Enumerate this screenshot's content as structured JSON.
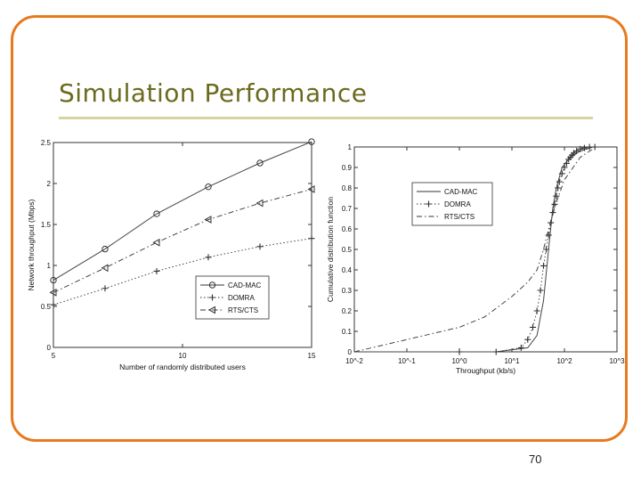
{
  "slide": {
    "title": "Simulation Performance",
    "page_number": "70",
    "accent_color": "#e87a1c",
    "title_color": "#6b6a1e"
  },
  "chart_data": [
    {
      "type": "line",
      "xlabel": "Number of randomly distributed users",
      "ylabel": "Network throughput (Mbps)",
      "xlim": [
        5,
        15
      ],
      "ylim": [
        0,
        2.5
      ],
      "xticks": [
        5,
        10,
        15
      ],
      "xtick_labels": [
        "5",
        "10",
        "15"
      ],
      "yticks": [
        0,
        0.5,
        1,
        1.5,
        2,
        2.5
      ],
      "ytick_labels": [
        "0",
        "0.5",
        "1",
        "1.5",
        "2",
        "2.5"
      ],
      "legend_position": "lower-right",
      "series": [
        {
          "name": "CAD-MAC",
          "marker": "o",
          "dash": "solid",
          "x": [
            5,
            7,
            9,
            11,
            13,
            15
          ],
          "y": [
            0.82,
            1.2,
            1.63,
            1.96,
            2.25,
            2.51
          ]
        },
        {
          "name": "DOMRA",
          "marker": "+",
          "dash": "dotted",
          "x": [
            5,
            7,
            9,
            11,
            13,
            15
          ],
          "y": [
            0.52,
            0.72,
            0.93,
            1.1,
            1.23,
            1.33
          ]
        },
        {
          "name": "RTS/CTS",
          "marker": "<",
          "dash": "dashdot",
          "x": [
            5,
            7,
            9,
            11,
            13,
            15
          ],
          "y": [
            0.67,
            0.97,
            1.28,
            1.56,
            1.76,
            1.93
          ]
        }
      ]
    },
    {
      "type": "line",
      "xscale": "log",
      "xlabel": "Throughput (kb/s)",
      "ylabel": "Cumulative distribution function",
      "xlim": [
        0.01,
        1000
      ],
      "ylim": [
        0,
        1
      ],
      "xticks": [
        0.01,
        0.1,
        1,
        10,
        100,
        1000
      ],
      "xtick_labels": [
        "10^-2",
        "10^-1",
        "10^0",
        "10^1",
        "10^2",
        "10^3"
      ],
      "yticks": [
        0,
        0.1,
        0.2,
        0.3,
        0.4,
        0.5,
        0.6,
        0.7,
        0.8,
        0.9,
        1
      ],
      "ytick_labels": [
        "0",
        "0.1",
        "0.2",
        "0.3",
        "0.4",
        "0.5",
        "0.6",
        "0.7",
        "0.8",
        "0.9",
        "1"
      ],
      "legend_position": "upper-left",
      "series": [
        {
          "name": "CAD-MAC",
          "marker": "",
          "dash": "solid",
          "x": [
            0.01,
            5,
            20,
            30,
            40,
            50,
            60,
            70,
            90,
            130,
            200,
            350
          ],
          "y": [
            0,
            0,
            0.02,
            0.08,
            0.25,
            0.5,
            0.7,
            0.8,
            0.9,
            0.95,
            0.98,
            1.0
          ]
        },
        {
          "name": "DOMRA",
          "marker": "+",
          "dash": "dotted",
          "x": [
            1,
            5,
            15,
            20,
            25,
            30,
            35,
            40,
            45,
            50,
            55,
            60,
            65,
            70,
            75,
            80,
            90,
            100,
            110,
            120,
            130,
            140,
            150,
            170,
            200,
            240,
            300,
            380
          ],
          "y": [
            0,
            0,
            0.02,
            0.06,
            0.12,
            0.2,
            0.3,
            0.42,
            0.5,
            0.57,
            0.63,
            0.68,
            0.72,
            0.76,
            0.8,
            0.83,
            0.87,
            0.9,
            0.92,
            0.94,
            0.95,
            0.96,
            0.97,
            0.98,
            0.99,
            0.995,
            1.0,
            1.0
          ]
        },
        {
          "name": "RTS/CTS",
          "marker": "",
          "dash": "dashdot",
          "x": [
            0.01,
            0.1,
            1,
            3,
            10,
            20,
            30,
            40,
            50,
            70,
            100,
            200,
            400
          ],
          "y": [
            0,
            0.06,
            0.12,
            0.17,
            0.27,
            0.34,
            0.4,
            0.5,
            0.6,
            0.73,
            0.84,
            0.95,
            1.0
          ]
        }
      ]
    }
  ]
}
